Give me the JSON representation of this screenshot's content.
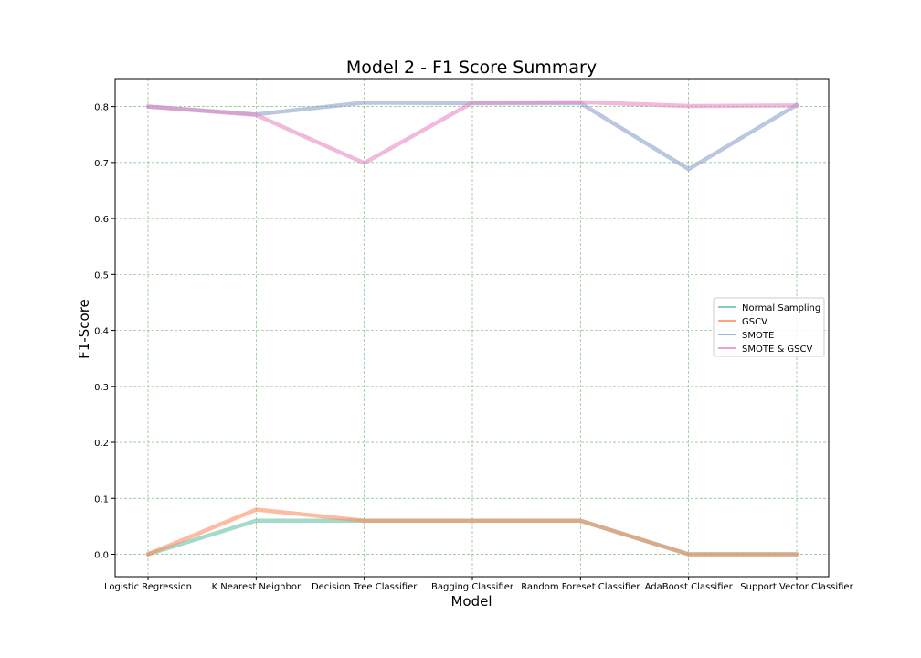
{
  "chart_data": {
    "type": "line",
    "title": "Model 2 - F1 Score Summary",
    "xlabel": "Model",
    "ylabel": "F1-Score",
    "categories": [
      "Logistic Regression",
      "K Nearest Neighbor",
      "Decision Tree Classifier",
      "Bagging Classifier",
      "Random Foreset Classifier",
      "AdaBoost Classifier",
      "Support Vector Classifier"
    ],
    "ylim": [
      -0.04,
      0.85
    ],
    "yticks": [
      "0.0",
      "0.1",
      "0.2",
      "0.3",
      "0.4",
      "0.5",
      "0.6",
      "0.7",
      "0.8"
    ],
    "grid": true,
    "legend_position": "center-right",
    "series": [
      {
        "name": "Normal Sampling",
        "color": "#66c2a5",
        "values": [
          0.0,
          0.06,
          0.06,
          0.06,
          0.06,
          0.0,
          0.0
        ]
      },
      {
        "name": "GSCV",
        "color": "#fc8d62",
        "values": [
          0.0,
          0.08,
          0.06,
          0.06,
          0.06,
          0.0,
          0.0
        ]
      },
      {
        "name": "SMOTE",
        "color": "#8da0cb",
        "values": [
          0.8,
          0.786,
          0.807,
          0.806,
          0.806,
          0.688,
          0.803
        ]
      },
      {
        "name": "SMOTE & GSCV",
        "color": "#e78ac3",
        "values": [
          0.8,
          0.785,
          0.699,
          0.807,
          0.808,
          0.801,
          0.802
        ]
      }
    ]
  }
}
